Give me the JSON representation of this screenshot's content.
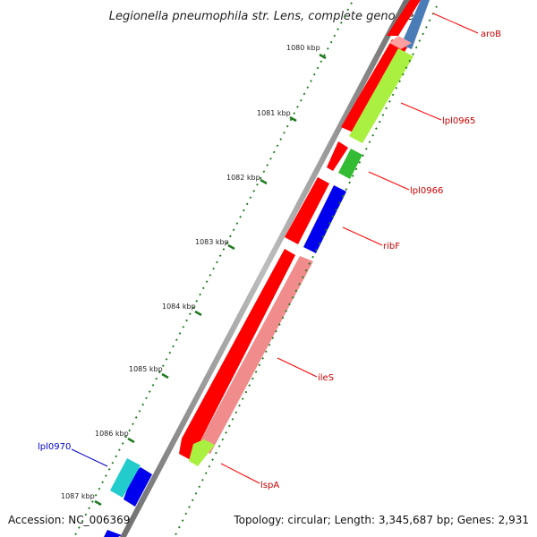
{
  "map": {
    "title": "Legionella pneumophila str. Lens, complete genome",
    "ticks": [
      "1080 kbp",
      "1081 kbp",
      "1082 kbp",
      "1083 kbp",
      "1084 kbp",
      "1085 kbp",
      "1086 kbp",
      "1087 kbp"
    ],
    "genes": [
      {
        "name": "aroB",
        "label_color": "#cc0000",
        "color": "#4a7db8"
      },
      {
        "name": "lpl0965",
        "label_color": "#cc0000",
        "color": "#aaf040"
      },
      {
        "name": "lpl0966",
        "label_color": "#cc0000",
        "color": "#33bb33"
      },
      {
        "name": "ribF",
        "label_color": "#cc0000",
        "color": "#0000ee"
      },
      {
        "name": "ileS",
        "label_color": "#cc0000",
        "color": "#f08c8c"
      },
      {
        "name": "lspA",
        "label_color": "#cc0000",
        "color": "#aaf040"
      },
      {
        "name": "lpl0970",
        "label_color": "#0000cc",
        "color": "#22cccc"
      }
    ],
    "colors": {
      "cds_forward": "#ff0000",
      "backbone": "#888888",
      "tick": "#1f7a1f",
      "reverse_blue": "#0000ee"
    }
  },
  "footer": {
    "accession": "Accession: NC_006369",
    "topology": "Topology: circular; Length: 3,345,687 bp; Genes: 2,931"
  }
}
